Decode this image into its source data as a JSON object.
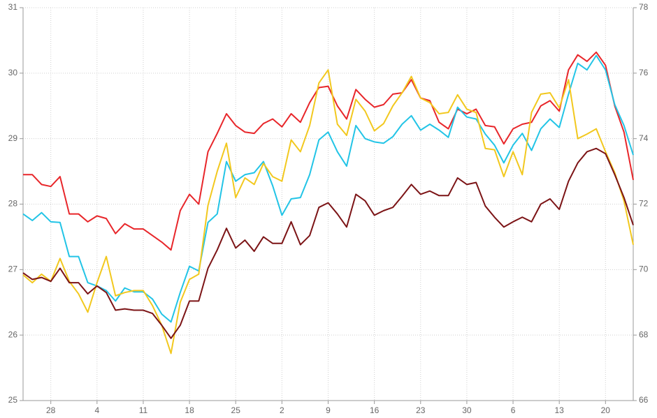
{
  "chart_data": {
    "type": "line",
    "categories": [
      null,
      null,
      null,
      "28",
      null,
      null,
      null,
      null,
      "4",
      null,
      null,
      null,
      null,
      "11",
      null,
      null,
      null,
      null,
      "18",
      null,
      null,
      null,
      null,
      "25",
      null,
      null,
      null,
      null,
      "2",
      null,
      null,
      null,
      null,
      "9",
      null,
      null,
      null,
      null,
      "16",
      null,
      null,
      null,
      null,
      "23",
      null,
      null,
      null,
      null,
      "30",
      null,
      null,
      null,
      null,
      "6",
      null,
      null,
      null,
      null,
      "13",
      null,
      null,
      null,
      null,
      "20",
      null,
      null,
      null
    ],
    "ylim": [
      25,
      31
    ],
    "yticks": [
      25,
      26,
      27,
      28,
      29,
      30,
      31
    ],
    "y2lim": [
      66,
      78
    ],
    "y2ticks": [
      66,
      68,
      70,
      72,
      74,
      76,
      78
    ],
    "grid": true,
    "series": [
      {
        "color": "#e8262a",
        "values": [
          28.45,
          28.45,
          28.3,
          28.27,
          28.42,
          27.85,
          27.85,
          27.73,
          27.82,
          27.78,
          27.55,
          27.7,
          27.62,
          27.62,
          27.52,
          27.42,
          27.3,
          27.9,
          28.15,
          28.0,
          28.8,
          29.08,
          29.38,
          29.2,
          29.1,
          29.08,
          29.23,
          29.3,
          29.18,
          29.38,
          29.25,
          29.55,
          29.78,
          29.8,
          29.5,
          29.3,
          29.75,
          29.6,
          29.48,
          29.52,
          29.68,
          29.7,
          29.9,
          29.62,
          29.58,
          29.25,
          29.15,
          29.45,
          29.38,
          29.45,
          29.2,
          29.18,
          28.92,
          29.15,
          29.22,
          29.25,
          29.5,
          29.58,
          29.42,
          30.05,
          30.28,
          30.18,
          30.32,
          30.12,
          29.5,
          29.1,
          28.37
        ]
      },
      {
        "color": "#22c4e6",
        "values": [
          27.85,
          27.75,
          27.87,
          27.73,
          27.72,
          27.2,
          27.2,
          26.8,
          26.75,
          26.68,
          26.52,
          26.72,
          26.66,
          26.66,
          26.55,
          26.32,
          26.2,
          26.65,
          27.05,
          26.98,
          27.72,
          27.85,
          28.65,
          28.35,
          28.45,
          28.48,
          28.65,
          28.28,
          27.83,
          28.08,
          28.1,
          28.45,
          28.98,
          29.1,
          28.8,
          28.58,
          29.2,
          29.0,
          28.95,
          28.93,
          29.03,
          29.22,
          29.35,
          29.13,
          29.22,
          29.13,
          29.02,
          29.48,
          29.33,
          29.3,
          29.07,
          28.9,
          28.63,
          28.9,
          29.08,
          28.82,
          29.15,
          29.3,
          29.17,
          29.68,
          30.15,
          30.05,
          30.27,
          30.05,
          29.52,
          29.2,
          28.75
        ]
      },
      {
        "color": "#f2c81e",
        "values": [
          26.92,
          26.8,
          26.93,
          26.82,
          27.17,
          26.82,
          26.63,
          26.35,
          26.8,
          27.2,
          26.6,
          26.65,
          26.68,
          26.68,
          26.45,
          26.15,
          25.72,
          26.5,
          26.85,
          26.93,
          27.98,
          28.5,
          28.93,
          28.1,
          28.4,
          28.3,
          28.62,
          28.42,
          28.35,
          28.98,
          28.8,
          29.2,
          29.85,
          30.05,
          29.22,
          29.05,
          29.6,
          29.42,
          29.12,
          29.23,
          29.5,
          29.7,
          29.95,
          29.62,
          29.55,
          29.38,
          29.4,
          29.67,
          29.45,
          29.4,
          28.85,
          28.83,
          28.42,
          28.8,
          28.45,
          29.4,
          29.68,
          29.7,
          29.47,
          29.9,
          29.0,
          29.07,
          29.15,
          28.8,
          28.48,
          28.05,
          27.38
        ]
      },
      {
        "color": "#7c1416",
        "values": [
          26.95,
          26.85,
          26.88,
          26.82,
          27.02,
          26.8,
          26.8,
          26.63,
          26.75,
          26.65,
          26.38,
          26.4,
          26.38,
          26.38,
          26.33,
          26.15,
          25.95,
          26.15,
          26.52,
          26.52,
          27.02,
          27.3,
          27.63,
          27.33,
          27.45,
          27.28,
          27.5,
          27.4,
          27.4,
          27.73,
          27.38,
          27.52,
          27.95,
          28.02,
          27.85,
          27.65,
          28.15,
          28.05,
          27.83,
          27.9,
          27.95,
          28.12,
          28.3,
          28.15,
          28.2,
          28.13,
          28.13,
          28.4,
          28.3,
          28.33,
          27.97,
          27.8,
          27.65,
          27.73,
          27.8,
          27.73,
          28.0,
          28.08,
          27.92,
          28.35,
          28.63,
          28.8,
          28.85,
          28.77,
          28.45,
          28.1,
          27.68
        ]
      }
    ]
  }
}
